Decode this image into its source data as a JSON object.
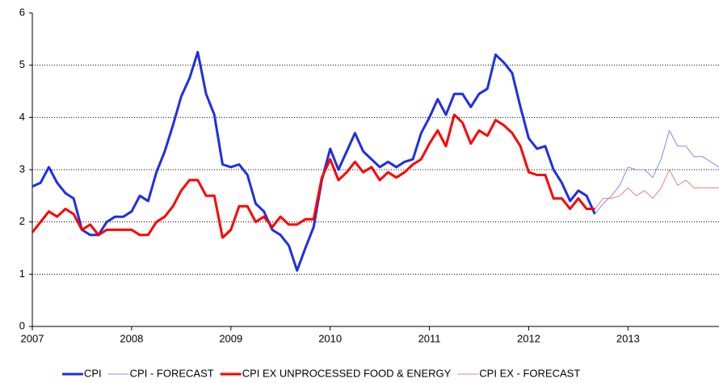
{
  "chart_data": {
    "type": "line",
    "x": [
      0,
      1,
      2,
      3,
      4,
      5,
      6,
      7,
      8,
      9,
      10,
      11,
      12,
      13,
      14,
      15,
      16,
      17,
      18,
      19,
      20,
      21,
      22,
      23,
      24,
      25,
      26,
      27,
      28,
      29,
      30,
      31,
      32,
      33,
      34,
      35,
      36,
      37,
      38,
      39,
      40,
      41,
      42,
      43,
      44,
      45,
      46,
      47,
      48,
      49,
      50,
      51,
      52,
      53,
      54,
      55,
      56,
      57,
      58,
      59,
      60,
      61,
      62,
      63,
      64,
      65,
      66,
      67,
      68,
      69,
      70,
      71,
      72,
      73,
      74,
      75,
      76,
      77,
      78,
      79,
      80,
      81,
      82,
      83
    ],
    "xlim": [
      0,
      83
    ],
    "xticks": [
      {
        "value": 0,
        "label": "2007"
      },
      {
        "value": 12,
        "label": "2008"
      },
      {
        "value": 24,
        "label": "2009"
      },
      {
        "value": 36,
        "label": "2010"
      },
      {
        "value": 48,
        "label": "2011"
      },
      {
        "value": 60,
        "label": "2012"
      },
      {
        "value": 72,
        "label": "2013"
      }
    ],
    "ylim": [
      0,
      6
    ],
    "yticks": [
      0,
      1,
      2,
      3,
      4,
      5,
      6
    ],
    "grid": true,
    "legend": "bottom",
    "series": [
      {
        "name": "CPI",
        "color": "#1f2ee6",
        "width": 3,
        "values": [
          2.68,
          2.75,
          3.05,
          2.75,
          2.55,
          2.45,
          1.85,
          1.75,
          1.75,
          2.0,
          2.1,
          2.1,
          2.2,
          2.5,
          2.4,
          2.95,
          3.35,
          3.85,
          4.4,
          4.75,
          5.25,
          4.45,
          4.05,
          3.1,
          3.05,
          3.1,
          2.9,
          2.35,
          2.2,
          1.85,
          1.75,
          1.55,
          1.07,
          1.5,
          1.9,
          2.8,
          3.4,
          3.0,
          3.35,
          3.7,
          3.35,
          3.2,
          3.05,
          3.15,
          3.05,
          3.15,
          3.2,
          3.7,
          4.0,
          4.35,
          4.05,
          4.45,
          4.45,
          4.2,
          4.45,
          4.55,
          5.2,
          5.05,
          4.85,
          4.2,
          3.6,
          3.4,
          3.45,
          3.0,
          2.75,
          2.4,
          2.6,
          2.5,
          2.15,
          null,
          null,
          null,
          null,
          null,
          null,
          null,
          null,
          null,
          null,
          null,
          null,
          null,
          null,
          null
        ]
      },
      {
        "name": "CPI - FORECAST",
        "color": "#7f8af0",
        "width": 1,
        "values": [
          null,
          null,
          null,
          null,
          null,
          null,
          null,
          null,
          null,
          null,
          null,
          null,
          null,
          null,
          null,
          null,
          null,
          null,
          null,
          null,
          null,
          null,
          null,
          null,
          null,
          null,
          null,
          null,
          null,
          null,
          null,
          null,
          null,
          null,
          null,
          null,
          null,
          null,
          null,
          null,
          null,
          null,
          null,
          null,
          null,
          null,
          null,
          null,
          null,
          null,
          null,
          null,
          null,
          null,
          null,
          null,
          null,
          null,
          null,
          null,
          null,
          null,
          null,
          null,
          null,
          null,
          null,
          null,
          2.15,
          2.35,
          2.5,
          2.7,
          3.05,
          3.0,
          3.0,
          2.85,
          3.2,
          3.75,
          3.45,
          3.45,
          3.25,
          3.25,
          3.15,
          3.05
        ]
      },
      {
        "name": "CPI EX UNPROCESSED FOOD & ENERGY",
        "color": "#ff0000",
        "width": 3,
        "values": [
          1.8,
          2.0,
          2.2,
          2.1,
          2.25,
          2.15,
          1.85,
          1.95,
          1.75,
          1.85,
          1.85,
          1.85,
          1.85,
          1.75,
          1.75,
          2.0,
          2.1,
          2.3,
          2.6,
          2.8,
          2.8,
          2.5,
          2.5,
          1.7,
          1.85,
          2.3,
          2.3,
          2.0,
          2.1,
          1.9,
          2.1,
          1.95,
          1.95,
          2.05,
          2.05,
          2.85,
          3.2,
          2.8,
          2.95,
          3.15,
          2.95,
          3.05,
          2.8,
          2.95,
          2.85,
          2.95,
          3.1,
          3.2,
          3.5,
          3.75,
          3.45,
          4.05,
          3.9,
          3.5,
          3.75,
          3.65,
          3.95,
          3.85,
          3.7,
          3.45,
          2.95,
          2.9,
          2.9,
          2.45,
          2.45,
          2.25,
          2.45,
          2.25,
          2.25,
          null,
          null,
          null,
          null,
          null,
          null,
          null,
          null,
          null,
          null,
          null,
          null,
          null,
          null,
          null
        ]
      },
      {
        "name": "CPI EX - FORECAST",
        "color": "#f08080",
        "width": 1,
        "values": [
          null,
          null,
          null,
          null,
          null,
          null,
          null,
          null,
          null,
          null,
          null,
          null,
          null,
          null,
          null,
          null,
          null,
          null,
          null,
          null,
          null,
          null,
          null,
          null,
          null,
          null,
          null,
          null,
          null,
          null,
          null,
          null,
          null,
          null,
          null,
          null,
          null,
          null,
          null,
          null,
          null,
          null,
          null,
          null,
          null,
          null,
          null,
          null,
          null,
          null,
          null,
          null,
          null,
          null,
          null,
          null,
          null,
          null,
          null,
          null,
          null,
          null,
          null,
          null,
          null,
          null,
          null,
          null,
          2.25,
          2.45,
          2.45,
          2.5,
          2.65,
          2.5,
          2.6,
          2.45,
          2.65,
          3.0,
          2.7,
          2.8,
          2.65,
          2.65,
          2.65,
          2.65
        ]
      }
    ]
  }
}
